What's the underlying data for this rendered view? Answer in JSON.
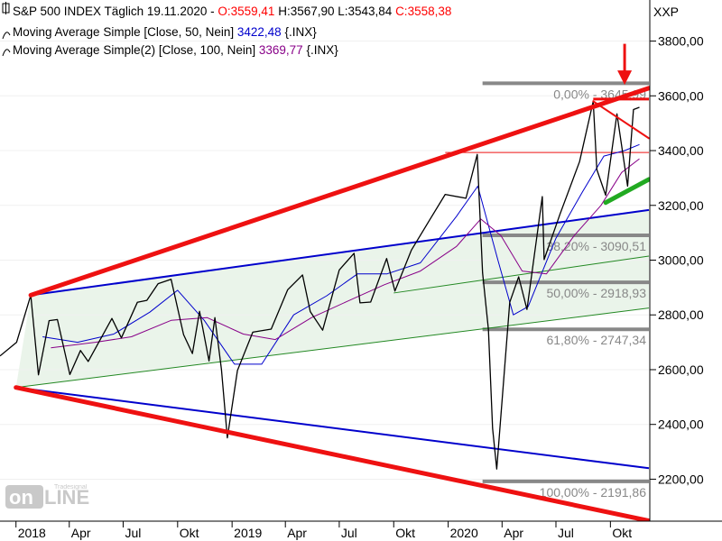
{
  "header": {
    "line1": {
      "prefix": "S&P 500 INDEX Täglich  19.11.2020 - ",
      "open": "O:3559,41",
      "rest": " H:3567,90 L:3543,84 ",
      "close": "C:3558,38"
    },
    "line2": {
      "label": "Moving Average Simple [Close, 50, Nein] ",
      "value": "3422,48",
      "suffix": " {.INX}"
    },
    "line3": {
      "label": "Moving Average Simple(2) [Close, 100, Nein] ",
      "value": "3369,77",
      "suffix": " {.INX}"
    }
  },
  "colors": {
    "price": "#000000",
    "ma50": "#0000cc",
    "ma100": "#880088",
    "open": "#ff0000",
    "close": "#ff0000",
    "trend_red": "#ee1111",
    "channel_blue": "#0000cc",
    "channel_green": "#228822",
    "channel_fill": "#eaf4ea",
    "fib": "#888888",
    "support_green": "#22aa22"
  },
  "watermark": {
    "brand": "Tradesignal",
    "word1": "on",
    "word2": "LINE"
  },
  "y_axis": {
    "symbol": "XXP",
    "ticks": [
      {
        "v": 3800,
        "label": "3800,00"
      },
      {
        "v": 3600,
        "label": "3600,00"
      },
      {
        "v": 3400,
        "label": "3400,00"
      },
      {
        "v": 3200,
        "label": "3200,00"
      },
      {
        "v": 3000,
        "label": "3000,00"
      },
      {
        "v": 2800,
        "label": "2800,00"
      },
      {
        "v": 2600,
        "label": "2600,00"
      },
      {
        "v": 2400,
        "label": "2400,00"
      },
      {
        "v": 2200,
        "label": "2200,00"
      }
    ]
  },
  "x_axis": {
    "ticks": [
      {
        "t": "2018-01-01",
        "label": "2018"
      },
      {
        "t": "2018-04-01",
        "label": "Apr"
      },
      {
        "t": "2018-07-01",
        "label": "Jul"
      },
      {
        "t": "2018-10-01",
        "label": "Okt"
      },
      {
        "t": "2019-01-01",
        "label": "2019"
      },
      {
        "t": "2019-04-01",
        "label": "Apr"
      },
      {
        "t": "2019-07-01",
        "label": "Jul"
      },
      {
        "t": "2019-10-01",
        "label": "Okt"
      },
      {
        "t": "2020-01-01",
        "label": "2020"
      },
      {
        "t": "2020-04-01",
        "label": "Apr"
      },
      {
        "t": "2020-07-01",
        "label": "Jul"
      },
      {
        "t": "2020-10-01",
        "label": "Okt"
      }
    ]
  },
  "chart_data": {
    "type": "line",
    "title": "S&P 500 INDEX Täglich",
    "ylim": [
      2050,
      3950
    ],
    "xlim": [
      "2017-12-05",
      "2020-12-05"
    ],
    "series": [
      {
        "name": "S&P 500 INDEX",
        "x": [
          "2017-12-05",
          "2018-01-02",
          "2018-01-26",
          "2018-02-08",
          "2018-02-26",
          "2018-03-12",
          "2018-04-02",
          "2018-04-20",
          "2018-05-03",
          "2018-06-12",
          "2018-06-28",
          "2018-07-25",
          "2018-08-10",
          "2018-08-29",
          "2018-09-20",
          "2018-10-11",
          "2018-10-26",
          "2018-11-07",
          "2018-11-23",
          "2018-12-03",
          "2018-12-14",
          "2018-12-24",
          "2019-01-10",
          "2019-02-05",
          "2019-03-08",
          "2019-04-05",
          "2019-04-30",
          "2019-05-13",
          "2019-06-03",
          "2019-07-01",
          "2019-07-26",
          "2019-08-05",
          "2019-08-23",
          "2019-09-19",
          "2019-10-03",
          "2019-10-31",
          "2019-11-29",
          "2019-12-27",
          "2020-01-31",
          "2020-02-19",
          "2020-02-28",
          "2020-03-09",
          "2020-03-16",
          "2020-03-23",
          "2020-04-14",
          "2020-04-29",
          "2020-05-13",
          "2020-06-08",
          "2020-06-11",
          "2020-07-08",
          "2020-08-10",
          "2020-09-02",
          "2020-09-08",
          "2020-09-23",
          "2020-10-12",
          "2020-10-30",
          "2020-11-09",
          "2020-11-19"
        ],
        "values": [
          2650,
          2700,
          2872,
          2581,
          2779,
          2783,
          2582,
          2670,
          2630,
          2787,
          2716,
          2846,
          2853,
          2914,
          2930,
          2728,
          2659,
          2813,
          2632,
          2790,
          2600,
          2351,
          2597,
          2737,
          2748,
          2892,
          2946,
          2812,
          2744,
          2964,
          3025,
          2844,
          2847,
          3006,
          2887,
          3037,
          3141,
          3240,
          3226,
          3386,
          2954,
          2746,
          2386,
          2237,
          2846,
          2939,
          2820,
          3232,
          3002,
          3169,
          3360,
          3580,
          3331,
          3237,
          3534,
          3270,
          3550,
          3558
        ]
      },
      {
        "name": "Moving Average Simple [Close, 50, Nein]",
        "x": [
          "2018-02-15",
          "2018-04-15",
          "2018-06-15",
          "2018-08-15",
          "2018-10-01",
          "2018-11-15",
          "2019-01-05",
          "2019-02-20",
          "2019-04-15",
          "2019-06-10",
          "2019-08-01",
          "2019-09-20",
          "2019-11-15",
          "2020-01-15",
          "2020-02-20",
          "2020-03-25",
          "2020-04-20",
          "2020-05-15",
          "2020-07-01",
          "2020-08-15",
          "2020-09-20",
          "2020-10-25",
          "2020-11-19"
        ],
        "values": [
          2720,
          2700,
          2730,
          2810,
          2890,
          2780,
          2620,
          2620,
          2800,
          2870,
          2950,
          2950,
          2990,
          3160,
          3270,
          3000,
          2800,
          2830,
          3080,
          3250,
          3380,
          3400,
          3422
        ]
      },
      {
        "name": "Moving Average Simple(2) [Close, 100, Nein]",
        "x": [
          "2018-03-01",
          "2018-05-15",
          "2018-07-15",
          "2018-09-20",
          "2018-11-20",
          "2019-01-20",
          "2019-03-15",
          "2019-05-15",
          "2019-07-15",
          "2019-09-15",
          "2019-11-15",
          "2020-01-15",
          "2020-02-25",
          "2020-03-30",
          "2020-05-05",
          "2020-06-15",
          "2020-08-01",
          "2020-09-15",
          "2020-10-20",
          "2020-11-19"
        ],
        "values": [
          2680,
          2700,
          2720,
          2780,
          2790,
          2730,
          2710,
          2790,
          2850,
          2910,
          2960,
          3050,
          3150,
          3090,
          2960,
          2950,
          3090,
          3200,
          3320,
          3370
        ]
      }
    ],
    "annotations": {
      "fib_retracement": [
        {
          "label": "0,00% - 3645,99",
          "value": 3645.99
        },
        {
          "label": "38,20% - 3090,51",
          "value": 3090.51
        },
        {
          "label": "50,00% - 2918,93",
          "value": 2918.93
        },
        {
          "label": "61,80% - 2747,34",
          "value": 2747.34
        },
        {
          "label": "100,00% - 2191,86",
          "value": 2191.86
        }
      ],
      "red_horizontal": [
        {
          "value": 3393
        },
        {
          "value": 3588
        }
      ],
      "red_trendlines": [
        {
          "x": [
            "2018-01-26",
            "2020-12-05"
          ],
          "y": [
            2872,
            3628
          ]
        },
        {
          "x": [
            "2018-01-01",
            "2020-12-05"
          ],
          "y": [
            2535,
            2048
          ]
        },
        {
          "x": [
            "2020-09-02",
            "2020-12-05"
          ],
          "y": [
            3580,
            3445
          ]
        }
      ],
      "blue_lines": [
        {
          "x": [
            "2018-01-26",
            "2020-12-05"
          ],
          "y": [
            2872,
            3183
          ]
        },
        {
          "x": [
            "2018-01-01",
            "2020-12-05"
          ],
          "y": [
            2535,
            2240
          ]
        }
      ],
      "green_channel": [
        {
          "x": [
            "2018-01-01",
            "2020-12-05"
          ],
          "y": [
            2535,
            2825
          ]
        },
        {
          "x": [
            "2018-01-26",
            "2020-12-05"
          ],
          "y": [
            2872,
            3183
          ]
        },
        {
          "x": [
            "2019-10-01",
            "2020-12-05"
          ],
          "y": [
            2880,
            3015
          ]
        }
      ],
      "green_support": {
        "x": [
          "2020-09-23",
          "2020-12-05"
        ],
        "y": [
          3210,
          3295
        ]
      },
      "arrow": {
        "x": "2020-10-25",
        "y_from": 3790,
        "y_to": 3640
      }
    }
  }
}
